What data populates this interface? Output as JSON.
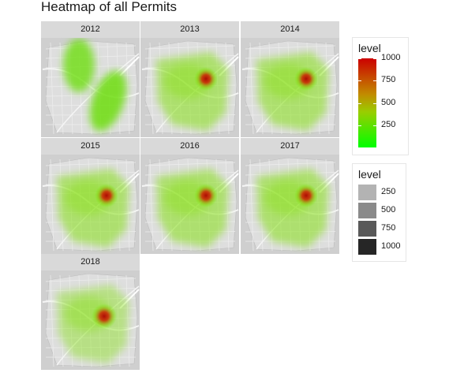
{
  "chart_data": {
    "type": "heatmap",
    "title": "Heatmap of all Permits",
    "facets": [
      "2012",
      "2013",
      "2014",
      "2015",
      "2016",
      "2017",
      "2018"
    ],
    "fill_legend": {
      "title": "level",
      "ticks": [
        1000,
        750,
        500,
        250
      ],
      "range": [
        0,
        1000
      ],
      "colors": {
        "low": "#00ff00",
        "high": "#cc0000"
      }
    },
    "alpha_legend": {
      "title": "level",
      "labels": [
        "250",
        "500",
        "750",
        "1000"
      ],
      "colors": [
        "#b3b3b3",
        "#8a8a8a",
        "#595959",
        "#262626"
      ]
    }
  }
}
